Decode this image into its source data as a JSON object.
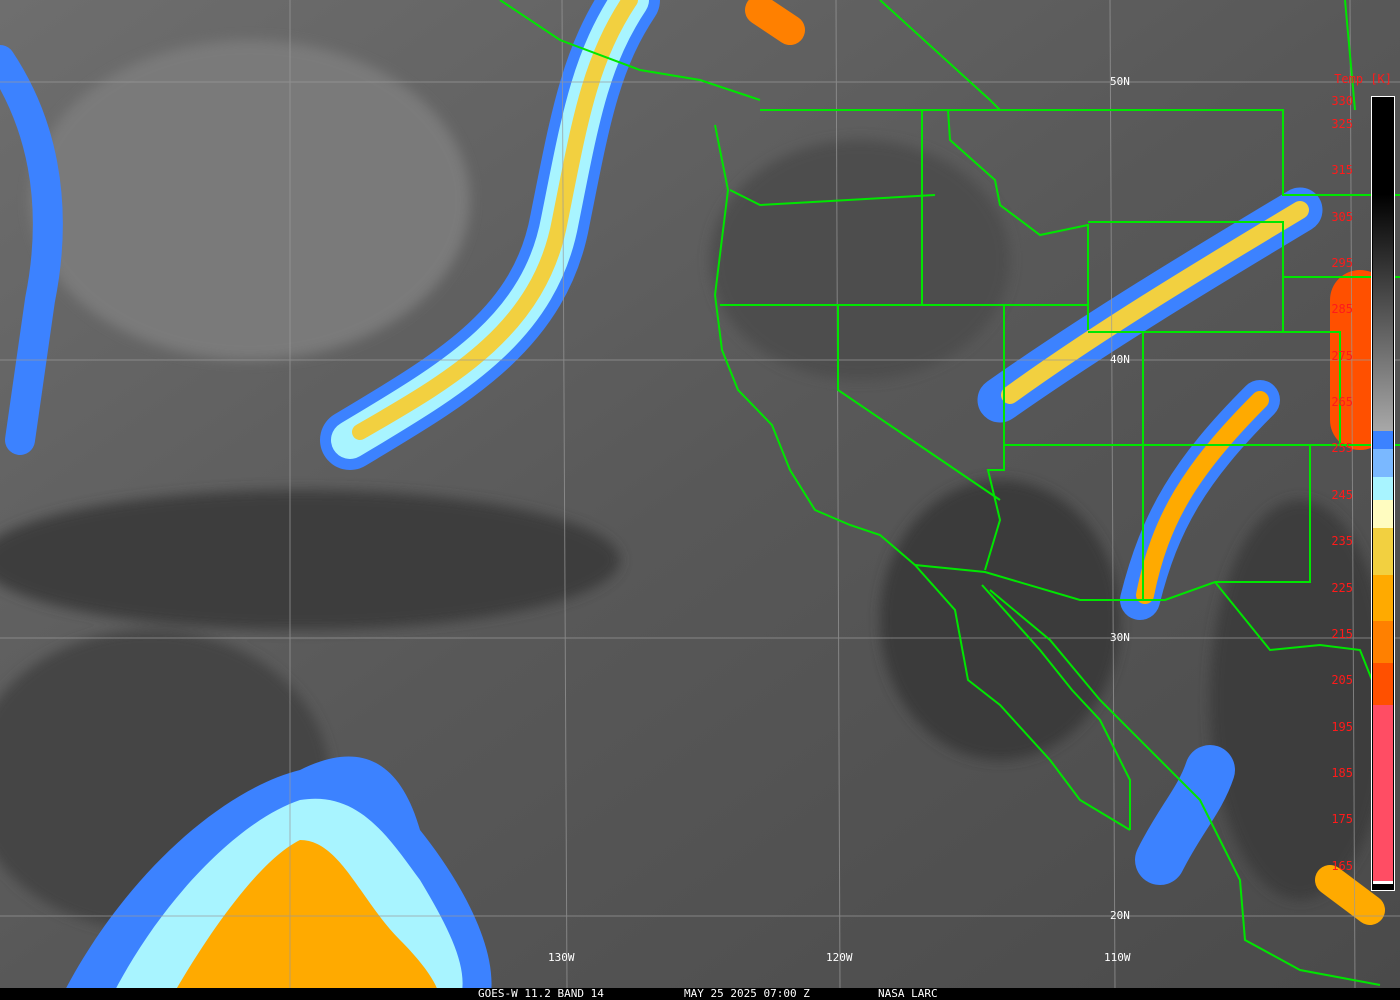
{
  "caption": {
    "product": "GOES-W 11.2 BAND 14",
    "datetime": "MAY 25 2025 07:00 Z",
    "source": "NASA LARC"
  },
  "grid": {
    "latitudes": [
      "50N",
      "40N",
      "30N",
      "20N"
    ],
    "longitudes": [
      "130W",
      "120W",
      "110W"
    ]
  },
  "colorbar": {
    "title": "Temp [K]",
    "range_k": [
      160,
      331
    ],
    "ticks": [
      "330",
      "325",
      "315",
      "305",
      "295",
      "285",
      "275",
      "265",
      "255",
      "245",
      "235",
      "225",
      "215",
      "205",
      "195",
      "185",
      "175",
      "165"
    ],
    "segments": [
      {
        "from": 331,
        "to": 310,
        "color": "#000000"
      },
      {
        "from": 310,
        "to": 259,
        "color": "gradient",
        "start": "#000000",
        "end": "#a8a8a8"
      },
      {
        "from": 259,
        "to": 255,
        "color": "#3c82ff"
      },
      {
        "from": 255,
        "to": 249,
        "color": "#7ab8ff"
      },
      {
        "from": 249,
        "to": 244,
        "color": "#a8f4ff"
      },
      {
        "from": 244,
        "to": 238,
        "color": "#fffcc0"
      },
      {
        "from": 238,
        "to": 228,
        "color": "#f2d040"
      },
      {
        "from": 228,
        "to": 218,
        "color": "#ffaa00"
      },
      {
        "from": 218,
        "to": 209,
        "color": "#ff8000"
      },
      {
        "from": 209,
        "to": 200,
        "color": "#ff5000"
      },
      {
        "from": 200,
        "to": 162,
        "color": "#ff4d64"
      },
      {
        "from": 162,
        "to": 161.3,
        "color": "#ffffff"
      },
      {
        "from": 161.3,
        "to": 160,
        "color": "#000000"
      }
    ]
  },
  "colors": {
    "borders": "#00e600",
    "grid": "#9a9a9a",
    "labels": "#ff1a1a"
  }
}
